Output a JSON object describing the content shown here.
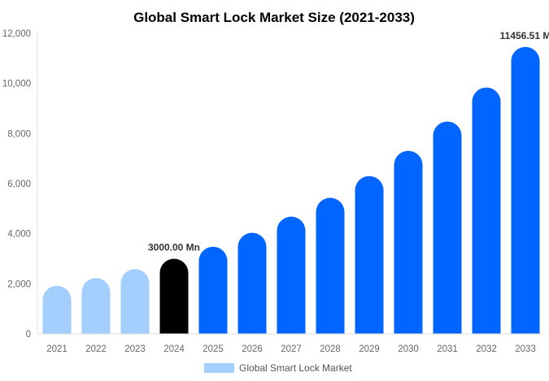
{
  "chart_data": {
    "type": "bar",
    "title": "Global Smart Lock Market Size (2021-2033)",
    "xlabel": "",
    "ylabel": "",
    "ylim": [
      0,
      12000
    ],
    "yticks": [
      0,
      2000,
      4000,
      6000,
      8000,
      10000,
      12000
    ],
    "ytick_labels": [
      "0",
      "2,000",
      "4,000",
      "6,000",
      "8,000",
      "10,000",
      "12,000"
    ],
    "categories": [
      "2021",
      "2022",
      "2023",
      "2024",
      "2025",
      "2026",
      "2027",
      "2028",
      "2029",
      "2030",
      "2031",
      "2032",
      "2033"
    ],
    "series": [
      {
        "name": "Global Smart Lock Market",
        "values": [
          1922,
          2229,
          2586,
          3000,
          3480,
          4037,
          4683,
          5432,
          6301,
          7310,
          8479,
          9836,
          11456.51
        ]
      }
    ],
    "bar_colors": [
      "#a3cfff",
      "#a3cfff",
      "#a3cfff",
      "#000000",
      "#0066ff",
      "#0066ff",
      "#0066ff",
      "#0066ff",
      "#0066ff",
      "#0066ff",
      "#0066ff",
      "#0066ff",
      "#0066ff"
    ],
    "data_labels": [
      {
        "category": "2024",
        "text": "3000.00 Mn"
      },
      {
        "category": "2033",
        "text": "11456.51 M"
      }
    ],
    "legend": {
      "label": "Global Smart Lock Market",
      "color": "#a3cfff",
      "placement": "bottom"
    },
    "grid": false
  }
}
